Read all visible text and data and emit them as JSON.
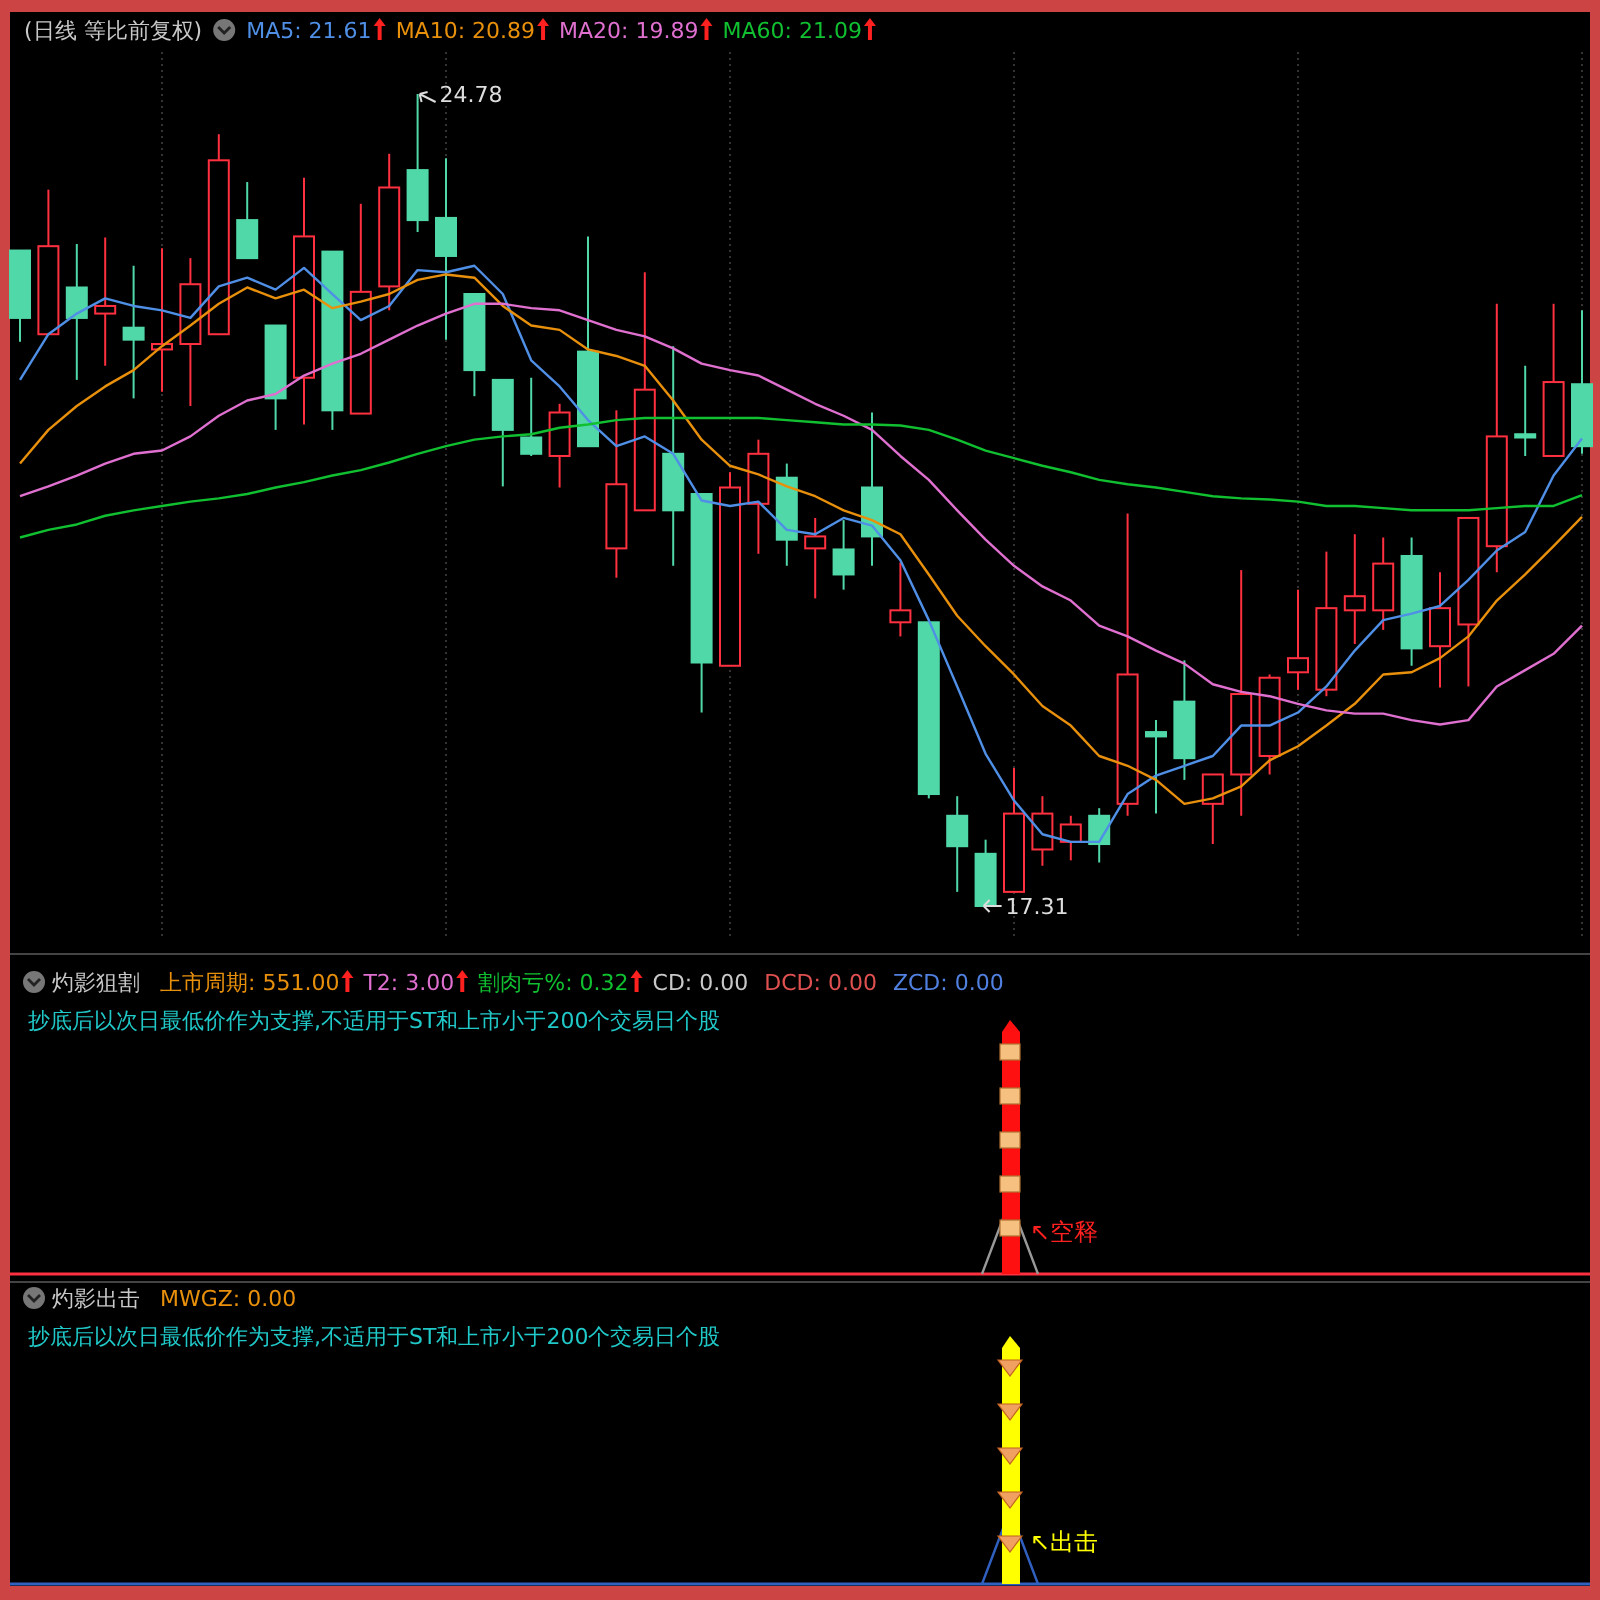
{
  "chart_data": [
    {
      "type": "candlestick",
      "title": "(日线 等比前复权)",
      "categories": [
        null,
        null,
        null,
        null,
        null,
        null,
        null,
        null,
        null,
        null,
        null,
        null,
        null,
        null,
        null,
        null,
        null,
        null,
        null,
        null,
        null,
        null,
        null,
        null,
        null,
        null,
        null,
        null,
        null,
        null,
        null,
        null,
        null,
        null,
        null,
        null,
        null,
        null,
        null,
        null,
        null,
        null,
        null,
        null,
        null,
        null,
        null,
        null,
        null,
        null,
        null,
        null,
        null,
        null,
        null,
        null
      ],
      "ohlc": [
        [
          23.34,
          23.34,
          22.5,
          22.72
        ],
        [
          22.57,
          23.9,
          22.57,
          23.38
        ],
        [
          23.0,
          23.4,
          22.15,
          22.72
        ],
        [
          22.76,
          23.46,
          22.28,
          22.83
        ],
        [
          22.63,
          23.2,
          21.98,
          22.52
        ],
        [
          22.43,
          23.36,
          22.04,
          22.48
        ],
        [
          22.48,
          23.27,
          21.91,
          23.03
        ],
        [
          22.57,
          24.41,
          22.57,
          24.17
        ],
        [
          23.62,
          23.97,
          23.27,
          23.27
        ],
        [
          22.65,
          22.65,
          21.69,
          21.98
        ],
        [
          22.17,
          24.01,
          21.74,
          23.47
        ],
        [
          23.33,
          23.33,
          21.69,
          21.87
        ],
        [
          21.84,
          23.77,
          21.84,
          22.96
        ],
        [
          23.01,
          24.23,
          22.79,
          23.92
        ],
        [
          24.08,
          24.78,
          23.51,
          23.62
        ],
        [
          23.64,
          24.19,
          22.52,
          23.29
        ],
        [
          22.94,
          22.94,
          22.0,
          22.24
        ],
        [
          22.15,
          22.15,
          21.17,
          21.69
        ],
        [
          21.62,
          22.17,
          21.45,
          21.47
        ],
        [
          21.45,
          21.93,
          21.16,
          21.85
        ],
        [
          22.41,
          23.47,
          21.54,
          21.54
        ],
        [
          20.6,
          21.87,
          20.33,
          21.19
        ],
        [
          20.95,
          23.14,
          20.95,
          22.06
        ],
        [
          21.47,
          22.46,
          20.44,
          20.95
        ],
        [
          21.1,
          21.1,
          19.09,
          19.55
        ],
        [
          19.52,
          21.3,
          19.52,
          21.16
        ],
        [
          21.01,
          21.6,
          20.55,
          21.47
        ],
        [
          21.25,
          21.38,
          20.44,
          20.68
        ],
        [
          20.6,
          20.88,
          20.14,
          20.71
        ],
        [
          20.59,
          20.86,
          20.22,
          20.36
        ],
        [
          21.16,
          21.85,
          20.44,
          20.71
        ],
        [
          19.92,
          20.47,
          19.79,
          20.03
        ],
        [
          19.92,
          19.92,
          18.3,
          18.34
        ],
        [
          18.14,
          18.32,
          17.44,
          17.86
        ],
        [
          17.79,
          17.92,
          17.31,
          17.31
        ],
        [
          17.44,
          18.58,
          17.44,
          18.16
        ],
        [
          17.83,
          18.32,
          17.68,
          18.16
        ],
        [
          17.9,
          18.14,
          17.73,
          18.06
        ],
        [
          18.14,
          18.21,
          17.71,
          17.88
        ],
        [
          18.25,
          20.92,
          18.14,
          19.44
        ],
        [
          18.91,
          19.02,
          18.16,
          18.87
        ],
        [
          19.19,
          19.57,
          18.47,
          18.67
        ],
        [
          18.25,
          18.52,
          17.88,
          18.52
        ],
        [
          18.52,
          20.4,
          18.14,
          19.26
        ],
        [
          18.69,
          19.44,
          18.52,
          19.41
        ],
        [
          19.46,
          20.22,
          19.3,
          19.59
        ],
        [
          19.3,
          20.57,
          19.24,
          20.05
        ],
        [
          20.03,
          20.73,
          19.72,
          20.16
        ],
        [
          20.03,
          20.7,
          19.85,
          20.46
        ],
        [
          20.53,
          20.7,
          19.52,
          19.68
        ],
        [
          19.7,
          20.38,
          19.32,
          20.05
        ],
        [
          19.9,
          20.88,
          19.33,
          20.88
        ],
        [
          20.62,
          22.85,
          20.38,
          21.63
        ],
        [
          21.65,
          22.28,
          21.45,
          21.62
        ],
        [
          21.45,
          22.85,
          21.45,
          22.13
        ],
        [
          22.11,
          22.79,
          21.47,
          21.54
        ]
      ],
      "series": [
        {
          "name": "MA5: 21.61",
          "type": "line",
          "color": "#4f8fe6",
          "values": [
            22.15,
            22.57,
            22.76,
            22.9,
            22.83,
            22.79,
            22.72,
            23.01,
            23.09,
            22.98,
            23.18,
            22.94,
            22.7,
            22.83,
            23.16,
            23.14,
            23.2,
            22.94,
            22.33,
            22.09,
            21.78,
            21.54,
            21.63,
            21.47,
            21.04,
            20.99,
            21.03,
            20.77,
            20.73,
            20.88,
            20.81,
            20.49,
            19.94,
            19.33,
            18.71,
            18.28,
            17.97,
            17.9,
            17.9,
            18.34,
            18.51,
            18.6,
            18.69,
            18.97,
            18.97,
            19.09,
            19.33,
            19.66,
            19.94,
            20.0,
            20.07,
            20.31,
            20.58,
            20.75,
            21.27,
            21.61
          ]
        },
        {
          "name": "MA10: 20.89",
          "type": "line",
          "color": "#e8900c",
          "values": [
            21.38,
            21.69,
            21.91,
            22.09,
            22.24,
            22.46,
            22.65,
            22.85,
            23.0,
            22.9,
            22.98,
            22.81,
            22.87,
            22.94,
            23.07,
            23.12,
            23.09,
            22.83,
            22.65,
            22.61,
            22.43,
            22.37,
            22.28,
            21.96,
            21.6,
            21.36,
            21.28,
            21.17,
            21.08,
            20.95,
            20.86,
            20.73,
            20.36,
            19.98,
            19.7,
            19.44,
            19.15,
            18.97,
            18.69,
            18.6,
            18.47,
            18.25,
            18.3,
            18.41,
            18.65,
            18.78,
            18.97,
            19.17,
            19.44,
            19.46,
            19.59,
            19.79,
            20.12,
            20.36,
            20.62,
            20.89
          ]
        },
        {
          "name": "MA20: 19.89",
          "type": "line",
          "color": "#e070d0",
          "values": [
            21.08,
            21.17,
            21.27,
            21.38,
            21.47,
            21.5,
            21.63,
            21.82,
            21.96,
            22.02,
            22.19,
            22.3,
            22.39,
            22.52,
            22.65,
            22.76,
            22.85,
            22.85,
            22.81,
            22.79,
            22.7,
            22.61,
            22.55,
            22.44,
            22.3,
            22.24,
            22.19,
            22.06,
            21.93,
            21.82,
            21.69,
            21.45,
            21.23,
            20.95,
            20.68,
            20.44,
            20.25,
            20.12,
            19.89,
            19.79,
            19.66,
            19.54,
            19.35,
            19.28,
            19.24,
            19.17,
            19.11,
            19.08,
            19.08,
            19.02,
            18.98,
            19.02,
            19.33,
            19.48,
            19.63,
            19.89
          ]
        },
        {
          "name": "MA60: 21.09",
          "type": "line",
          "color": "#10c030",
          "values": [
            20.7,
            20.77,
            20.82,
            20.9,
            20.95,
            20.99,
            21.03,
            21.06,
            21.1,
            21.16,
            21.21,
            21.27,
            21.32,
            21.39,
            21.47,
            21.54,
            21.6,
            21.63,
            21.65,
            21.71,
            21.74,
            21.78,
            21.8,
            21.8,
            21.8,
            21.8,
            21.8,
            21.78,
            21.76,
            21.74,
            21.74,
            21.73,
            21.69,
            21.6,
            21.5,
            21.43,
            21.36,
            21.3,
            21.23,
            21.19,
            21.16,
            21.12,
            21.08,
            21.06,
            21.05,
            21.03,
            20.99,
            20.99,
            20.97,
            20.95,
            20.95,
            20.95,
            20.97,
            20.99,
            20.99,
            21.09
          ]
        }
      ],
      "annotations": [
        "24.78",
        "17.31"
      ],
      "grid": "x"
    },
    {
      "type": "other",
      "title": "灼影狙割",
      "annotations": [
        "上市周期: 551.00",
        "T2: 3.00",
        "割肉亏%: 0.32",
        "CD: 0.00",
        "DCD: 0.00",
        "ZCD: 0.00",
        "抄底后以次日最低价作为支撑,不适用于ST和上市小于200个交易日个股",
        "↖空释"
      ]
    },
    {
      "type": "other",
      "title": "灼影出击",
      "annotations": [
        "MWGZ: 0.00",
        "抄底后以次日最低价作为支撑,不适用于ST和上市小于200个交易日个股",
        "↖出击"
      ]
    }
  ]
}
